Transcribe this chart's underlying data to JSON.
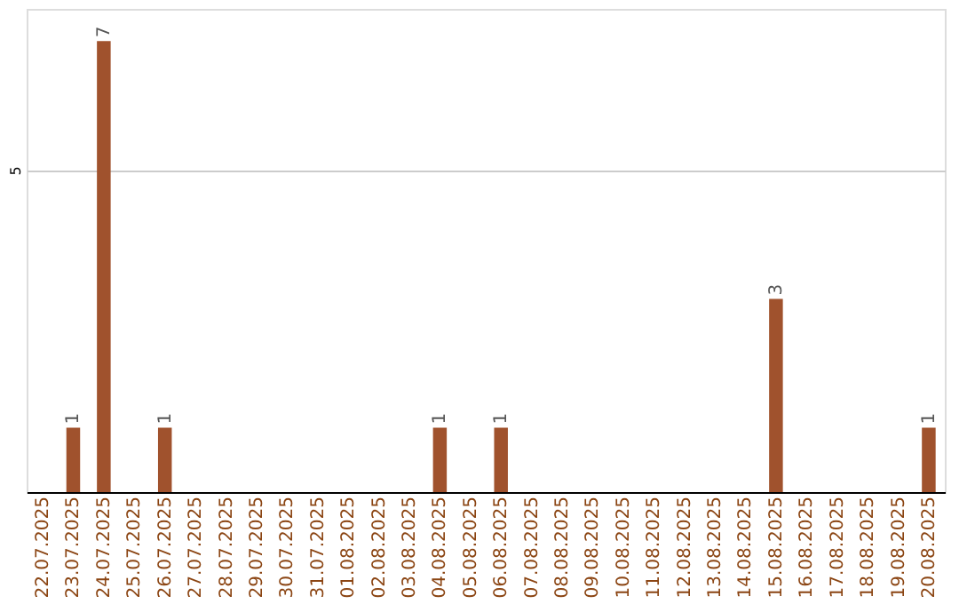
{
  "chart_data": {
    "type": "bar",
    "categories": [
      "22.07.2025",
      "23.07.2025",
      "24.07.2025",
      "25.07.2025",
      "26.07.2025",
      "27.07.2025",
      "28.07.2025",
      "29.07.2025",
      "30.07.2025",
      "31.07.2025",
      "01.08.2025",
      "02.08.2025",
      "03.08.2025",
      "04.08.2025",
      "05.08.2025",
      "06.08.2025",
      "07.08.2025",
      "08.08.2025",
      "09.08.2025",
      "10.08.2025",
      "11.08.2025",
      "12.08.2025",
      "13.08.2025",
      "14.08.2025",
      "15.08.2025",
      "16.08.2025",
      "17.08.2025",
      "18.08.2025",
      "19.08.2025",
      "20.08.2025"
    ],
    "values": [
      null,
      1,
      7,
      null,
      1,
      null,
      null,
      null,
      null,
      null,
      null,
      null,
      null,
      1,
      null,
      1,
      null,
      null,
      null,
      null,
      null,
      null,
      null,
      null,
      3,
      null,
      null,
      null,
      null,
      1
    ],
    "color": "#a0522d",
    "ylim": [
      0,
      7.5
    ],
    "yticks": [
      5
    ],
    "grid": "y",
    "data_labels": true
  }
}
